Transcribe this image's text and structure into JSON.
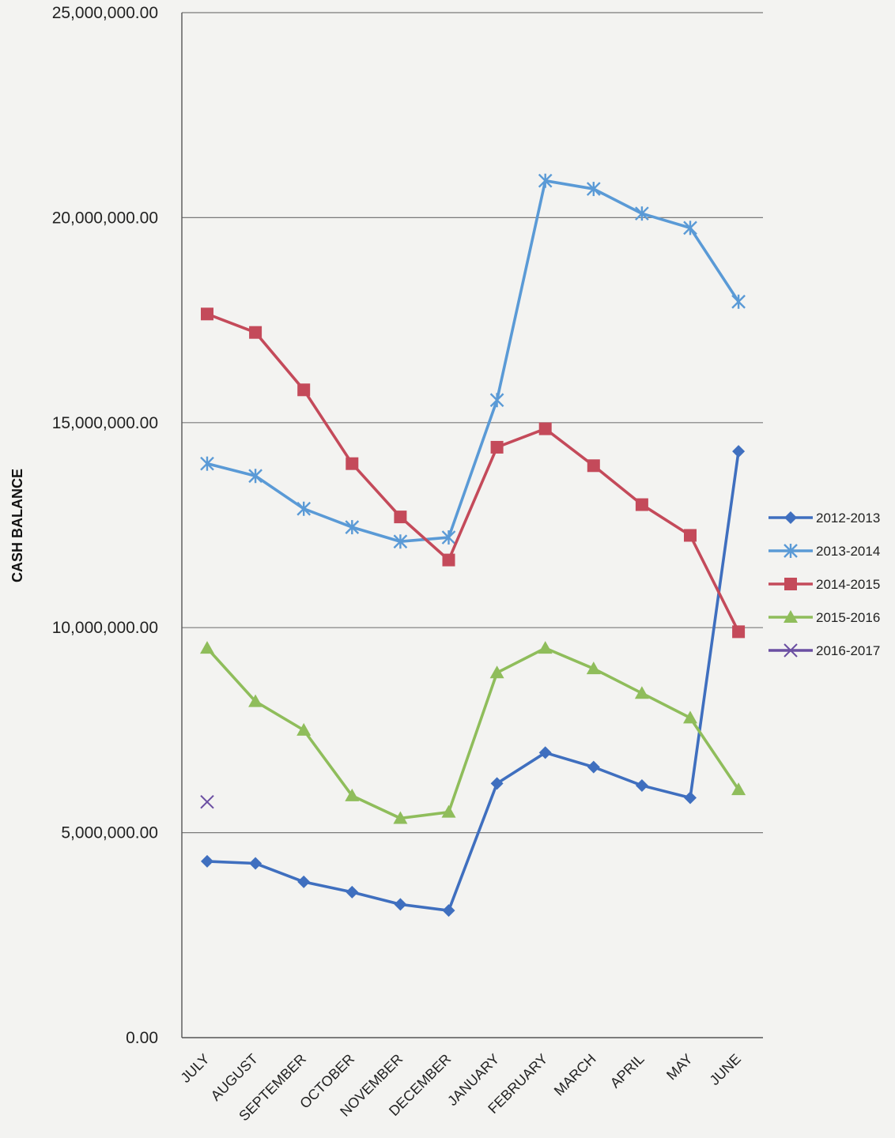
{
  "chart_data": {
    "type": "line",
    "title": "",
    "xlabel": "",
    "ylabel": "CASH BALANCE",
    "ylim": [
      0,
      25000000
    ],
    "yticks": [
      0,
      5000000,
      10000000,
      15000000,
      20000000,
      25000000
    ],
    "ytick_labels": [
      "0.00",
      "5,000,000.00",
      "10,000,000.00",
      "15,000,000.00",
      "20,000,000.00",
      "25,000,000.00"
    ],
    "grid": "horizontal",
    "legend_position": "right",
    "categories": [
      "JULY",
      "AUGUST",
      "SEPTEMBER",
      "OCTOBER",
      "NOVEMBER",
      "DECEMBER",
      "JANUARY",
      "FEBRUARY",
      "MARCH",
      "APRIL",
      "MAY",
      "JUNE"
    ],
    "series": [
      {
        "name": "2012-2013",
        "color": "#3f6fbf",
        "marker": "diamond",
        "values": [
          4300000,
          4250000,
          3800000,
          3550000,
          3250000,
          3100000,
          6200000,
          6950000,
          6600000,
          6150000,
          5850000,
          14300000
        ]
      },
      {
        "name": "2013-2014",
        "color": "#5a9ad6",
        "marker": "star",
        "values": [
          14000000,
          13700000,
          12900000,
          12450000,
          12100000,
          12200000,
          15550000,
          20900000,
          20700000,
          20100000,
          19750000,
          17950000
        ]
      },
      {
        "name": "2014-2015",
        "color": "#c44a5a",
        "marker": "square",
        "values": [
          17650000,
          17200000,
          15800000,
          14000000,
          12700000,
          11650000,
          14400000,
          14850000,
          13950000,
          13000000,
          12250000,
          9900000
        ]
      },
      {
        "name": "2015-2016",
        "color": "#8fbd5b",
        "marker": "triangle",
        "values": [
          9500000,
          8200000,
          7500000,
          5900000,
          5350000,
          5500000,
          8900000,
          9500000,
          9000000,
          8400000,
          7800000,
          6050000
        ]
      },
      {
        "name": "2016-2017",
        "color": "#6b4fa2",
        "marker": "x",
        "values": [
          5750000,
          null,
          null,
          null,
          null,
          null,
          null,
          null,
          null,
          null,
          null,
          null
        ]
      }
    ]
  }
}
